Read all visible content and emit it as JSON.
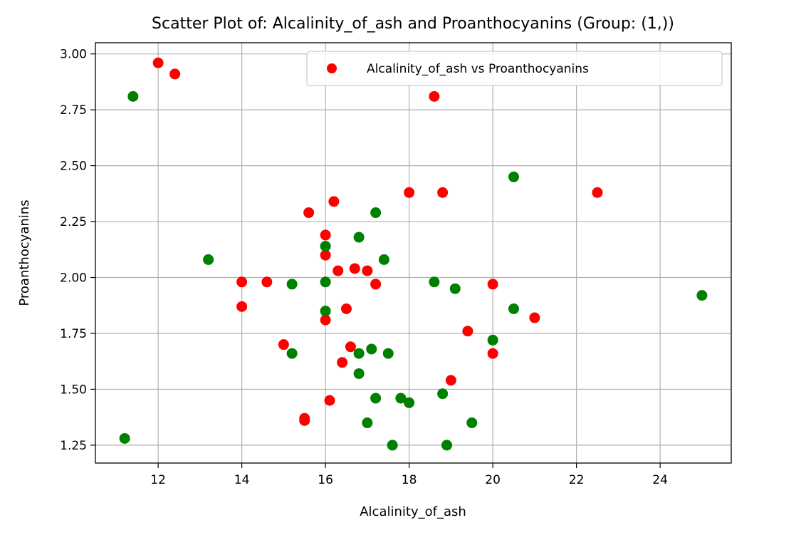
{
  "chart_data": {
    "type": "scatter",
    "title": "Scatter Plot of: Alcalinity_of_ash and Proanthocyanins (Group: (1,))",
    "xlabel": "Alcalinity_of_ash",
    "ylabel": "Proanthocyanins",
    "xlim": [
      10.5,
      25.7
    ],
    "ylim": [
      1.17,
      3.05
    ],
    "xticks": [
      12,
      14,
      16,
      18,
      20,
      22,
      24
    ],
    "yticks": [
      1.25,
      1.5,
      1.75,
      2.0,
      2.25,
      2.5,
      2.75,
      3.0
    ],
    "xtick_labels": [
      "12",
      "14",
      "16",
      "18",
      "20",
      "22",
      "24"
    ],
    "ytick_labels": [
      "1.25",
      "1.50",
      "1.75",
      "2.00",
      "2.25",
      "2.50",
      "2.75",
      "3.00"
    ],
    "grid": true,
    "legend_position": "top-right",
    "series": [
      {
        "name": "Alcalinity_of_ash vs Proanthocyanins",
        "color": "#ff0000",
        "in_legend": true,
        "points": [
          [
            12.0,
            2.96
          ],
          [
            12.4,
            2.91
          ],
          [
            18.6,
            2.81
          ],
          [
            18.0,
            2.38
          ],
          [
            18.8,
            2.38
          ],
          [
            22.5,
            2.38
          ],
          [
            16.2,
            2.34
          ],
          [
            15.6,
            2.29
          ],
          [
            16.0,
            2.19
          ],
          [
            16.0,
            2.1
          ],
          [
            16.3,
            2.03
          ],
          [
            16.7,
            2.04
          ],
          [
            17.0,
            2.03
          ],
          [
            14.0,
            1.98
          ],
          [
            14.6,
            1.98
          ],
          [
            17.2,
            1.97
          ],
          [
            20.0,
            1.97
          ],
          [
            14.0,
            1.87
          ],
          [
            16.5,
            1.86
          ],
          [
            21.0,
            1.82
          ],
          [
            16.0,
            1.81
          ],
          [
            19.4,
            1.76
          ],
          [
            15.0,
            1.7
          ],
          [
            16.6,
            1.69
          ],
          [
            20.0,
            1.66
          ],
          [
            16.4,
            1.62
          ],
          [
            19.0,
            1.54
          ],
          [
            16.1,
            1.45
          ],
          [
            15.5,
            1.37
          ],
          [
            15.5,
            1.36
          ]
        ]
      },
      {
        "name": "",
        "color": "#008000",
        "in_legend": false,
        "points": [
          [
            11.4,
            2.81
          ],
          [
            20.5,
            2.45
          ],
          [
            17.2,
            2.29
          ],
          [
            16.8,
            2.18
          ],
          [
            16.0,
            2.14
          ],
          [
            13.2,
            2.08
          ],
          [
            17.4,
            2.08
          ],
          [
            16.0,
            1.98
          ],
          [
            18.6,
            1.98
          ],
          [
            15.2,
            1.97
          ],
          [
            19.1,
            1.95
          ],
          [
            25.0,
            1.92
          ],
          [
            20.5,
            1.86
          ],
          [
            16.0,
            1.85
          ],
          [
            20.0,
            1.72
          ],
          [
            17.1,
            1.68
          ],
          [
            15.2,
            1.66
          ],
          [
            16.8,
            1.66
          ],
          [
            17.5,
            1.66
          ],
          [
            16.8,
            1.57
          ],
          [
            18.8,
            1.48
          ],
          [
            17.2,
            1.46
          ],
          [
            17.8,
            1.46
          ],
          [
            18.0,
            1.44
          ],
          [
            17.0,
            1.35
          ],
          [
            19.5,
            1.35
          ],
          [
            11.2,
            1.28
          ],
          [
            17.6,
            1.25
          ],
          [
            18.9,
            1.25
          ]
        ]
      }
    ]
  }
}
